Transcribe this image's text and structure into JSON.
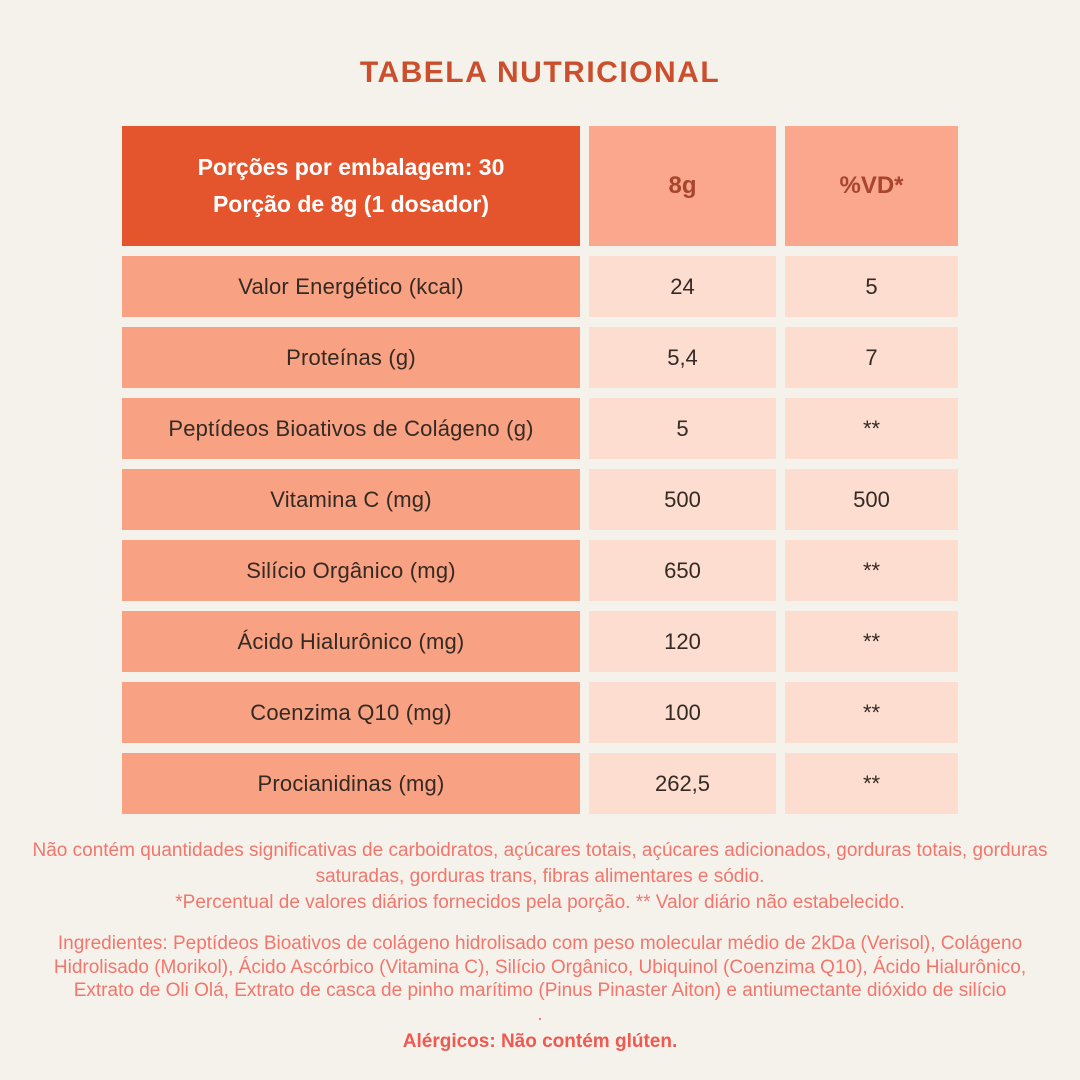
{
  "title": "TABELA NUTRICIONAL",
  "table": {
    "header": {
      "serving_line1": "Porções por embalagem: 30",
      "serving_line2": "Porção de 8g (1 dosador)",
      "amount_col": "8g",
      "dv_col": "%VD*"
    },
    "rows": [
      {
        "label": "Valor Energético (kcal)",
        "amount": "24",
        "dv": "5"
      },
      {
        "label": "Proteínas (g)",
        "amount": "5,4",
        "dv": "7"
      },
      {
        "label": "Peptídeos Bioativos de Colágeno (g)",
        "amount": "5",
        "dv": "**"
      },
      {
        "label": "Vitamina C (mg)",
        "amount": "500",
        "dv": "500"
      },
      {
        "label": "Silício Orgânico (mg)",
        "amount": "650",
        "dv": "**"
      },
      {
        "label": "Ácido Hialurônico (mg)",
        "amount": "120",
        "dv": "**"
      },
      {
        "label": "Coenzima Q10 (mg)",
        "amount": "100",
        "dv": "**"
      },
      {
        "label": "Procianidinas (mg)",
        "amount": "262,5",
        "dv": "**"
      }
    ]
  },
  "notes": {
    "no_significant_amounts": "Não contém quantidades significativas de carboidratos, açúcares totais, açúcares adicionados, gorduras totais, gorduras saturadas, gorduras trans, fibras alimentares e sódio.",
    "daily_value_note": "*Percentual de valores diários fornecidos pela porção. ** Valor diário não estabelecido."
  },
  "ingredients": {
    "text": "Ingredientes: Peptídeos Bioativos de colágeno hidrolisado com peso molecular médio de 2kDa (Verisol), Colágeno Hidrolisado (Morikol), Ácido Ascórbico (Vitamina C), Silício Orgânico, Ubiquinol (Coenzima Q10), Ácido Hialurônico, Extrato de Oli Olá, Extrato de casca de pinho marítimo (Pinus Pinaster Aiton) e antiumectante dióxido de silício",
    "trailing_period": "."
  },
  "allergens": "Alérgicos: Não contém glúten.",
  "colors": {
    "background": "#F5F1EB",
    "title": "#CB4F2C",
    "header_bg": "#E5552D",
    "header_text": "#FFFFFF",
    "header_cell_bg": "#FAA78E",
    "header_cell_text": "#A8452D",
    "label_cell_bg": "#F9A183",
    "value_cell_bg": "#FCDDD0",
    "cell_text": "#342A24",
    "note_text": "#F2766C",
    "allergen_text": "#EF594F"
  }
}
